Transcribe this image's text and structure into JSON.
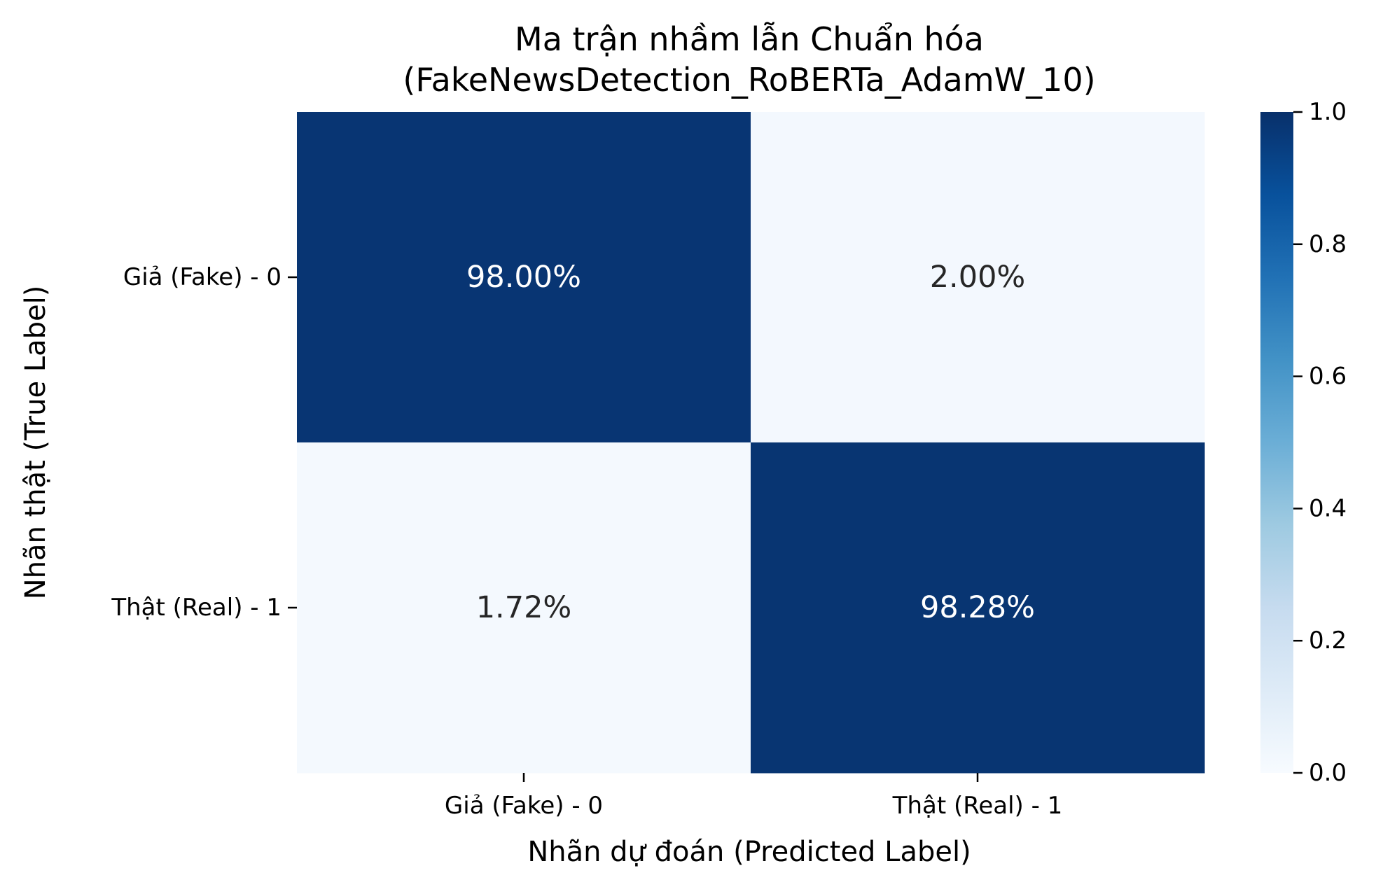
{
  "chart_data": {
    "type": "heatmap",
    "title_lines": [
      "Ma trận nhầm lẫn Chuẩn hóa",
      "(FakeNewsDetection_RoBERTa_AdamW_10)"
    ],
    "xlabel": "Nhãn dự đoán (Predicted Label)",
    "ylabel": "Nhãn thật (True Label)",
    "x_categories": [
      "Giả (Fake) - 0",
      "Thật (Real) - 1"
    ],
    "y_categories": [
      "Giả (Fake) - 0",
      "Thật (Real) - 1"
    ],
    "values": [
      [
        0.98,
        0.02
      ],
      [
        0.0172,
        0.9828
      ]
    ],
    "cell_labels": [
      [
        "98.00%",
        "2.00%"
      ],
      [
        "1.72%",
        "98.28%"
      ]
    ],
    "colorbar": {
      "range": [
        0.0,
        1.0
      ],
      "ticks": [
        "0.0",
        "0.2",
        "0.4",
        "0.6",
        "0.8",
        "1.0"
      ],
      "colormap": "Blues",
      "colors": [
        "#f7fbff",
        "#deebf7",
        "#c6dbef",
        "#9ecae1",
        "#6baed6",
        "#4292c6",
        "#2171b5",
        "#08519c",
        "#08306b"
      ]
    },
    "grid": false
  }
}
